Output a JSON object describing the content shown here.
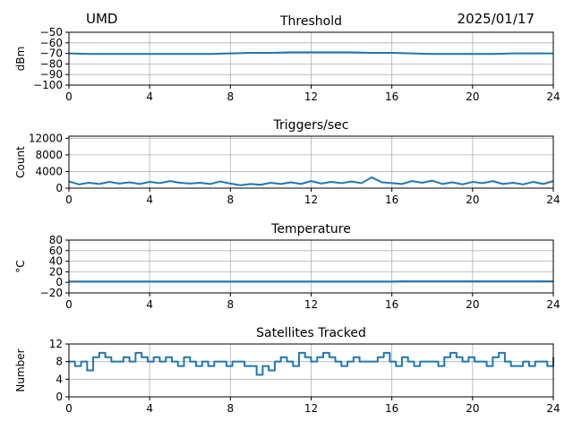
{
  "header": {
    "site": "UMD",
    "date": "2025/01/17"
  },
  "colors": {
    "series": "#1f77b4",
    "grid": "#b0b0b0",
    "axis": "#000000"
  },
  "chart_data": [
    {
      "id": "threshold",
      "type": "line",
      "title": "Threshold",
      "xlabel": "",
      "ylabel": "dBm",
      "xlim": [
        0,
        24
      ],
      "ylim": [
        -100,
        -50
      ],
      "xticks": [
        0,
        4,
        8,
        12,
        16,
        20,
        24
      ],
      "yticks": [
        -50,
        -60,
        -70,
        -80,
        -90,
        -100
      ],
      "ytick_labels": [
        "−50",
        "−60",
        "−70",
        "−80",
        "−90",
        "−100"
      ],
      "grid": true,
      "x": [
        0,
        1,
        2,
        3,
        4,
        5,
        6,
        7,
        8,
        9,
        10,
        11,
        12,
        13,
        14,
        15,
        16,
        17,
        18,
        19,
        20,
        21,
        22,
        23,
        24
      ],
      "y": [
        -70,
        -70.5,
        -70.5,
        -70.5,
        -70.5,
        -70.5,
        -70.5,
        -70.5,
        -70,
        -69.5,
        -69.5,
        -69,
        -69,
        -69,
        -69,
        -69.5,
        -69.5,
        -70,
        -70.5,
        -70.5,
        -70.5,
        -70.5,
        -70,
        -70,
        -70
      ]
    },
    {
      "id": "triggers",
      "type": "line",
      "title": "Triggers/sec",
      "xlabel": "",
      "ylabel": "Count",
      "xlim": [
        0,
        24
      ],
      "ylim": [
        0,
        12500
      ],
      "xticks": [
        0,
        4,
        8,
        12,
        16,
        20,
        24
      ],
      "yticks": [
        0,
        4000,
        8000,
        12000
      ],
      "ytick_labels": [
        "0",
        "4000",
        "8000",
        "12000"
      ],
      "grid": true,
      "x": [
        0,
        0.5,
        1,
        1.5,
        2,
        2.5,
        3,
        3.5,
        4,
        4.5,
        5,
        5.5,
        6,
        6.5,
        7,
        7.5,
        8,
        8.5,
        9,
        9.5,
        10,
        10.5,
        11,
        11.5,
        12,
        12.5,
        13,
        13.5,
        14,
        14.5,
        15,
        15.5,
        16,
        16.5,
        17,
        17.5,
        18,
        18.5,
        19,
        19.5,
        20,
        20.5,
        21,
        21.5,
        22,
        22.5,
        23,
        23.5,
        24
      ],
      "y": [
        1600,
        900,
        1300,
        1000,
        1500,
        1100,
        1400,
        1000,
        1500,
        1200,
        1700,
        1300,
        1100,
        1300,
        1000,
        1600,
        1100,
        700,
        1000,
        800,
        1300,
        1000,
        1400,
        1000,
        1700,
        1100,
        1500,
        1200,
        1600,
        1200,
        2600,
        1400,
        1200,
        1000,
        1700,
        1300,
        1800,
        1000,
        1400,
        900,
        1500,
        1200,
        1700,
        1000,
        1300,
        900,
        1500,
        1000,
        1700
      ]
    },
    {
      "id": "temperature",
      "type": "line",
      "title": "Temperature",
      "xlabel": "",
      "ylabel": "°C",
      "xlim": [
        0,
        24
      ],
      "ylim": [
        -20,
        80
      ],
      "xticks": [
        0,
        4,
        8,
        12,
        16,
        20,
        24
      ],
      "yticks": [
        -20,
        0,
        20,
        40,
        60,
        80
      ],
      "ytick_labels": [
        "−20",
        "0",
        "20",
        "40",
        "60",
        "80"
      ],
      "grid": true,
      "x": [
        0,
        4,
        8,
        12,
        16,
        16.5,
        20,
        24
      ],
      "y": [
        1.5,
        1.5,
        1.5,
        1.5,
        1.5,
        2,
        2,
        2
      ]
    },
    {
      "id": "satellites",
      "type": "line",
      "step": true,
      "title": "Satellites Tracked",
      "xlabel": "",
      "ylabel": "Number",
      "xlim": [
        0,
        24
      ],
      "ylim": [
        0,
        12
      ],
      "xticks": [
        0,
        4,
        8,
        12,
        16,
        20,
        24
      ],
      "yticks": [
        0,
        4,
        8,
        12
      ],
      "ytick_labels": [
        "0",
        "4",
        "8",
        "12"
      ],
      "grid": true,
      "x": [
        0,
        0.3,
        0.6,
        0.9,
        1.2,
        1.5,
        1.8,
        2.1,
        2.4,
        2.7,
        3.0,
        3.3,
        3.6,
        3.9,
        4.2,
        4.5,
        4.8,
        5.1,
        5.4,
        5.7,
        6.0,
        6.3,
        6.6,
        6.9,
        7.2,
        7.5,
        7.8,
        8.1,
        8.4,
        8.7,
        9.0,
        9.3,
        9.6,
        9.9,
        10.2,
        10.5,
        10.8,
        11.1,
        11.4,
        11.7,
        12.0,
        12.3,
        12.6,
        12.9,
        13.2,
        13.5,
        13.8,
        14.1,
        14.4,
        14.7,
        15.0,
        15.3,
        15.6,
        15.9,
        16.2,
        16.5,
        16.8,
        17.1,
        17.4,
        17.7,
        18.0,
        18.3,
        18.6,
        18.9,
        19.2,
        19.5,
        19.8,
        20.1,
        20.4,
        20.7,
        21.0,
        21.3,
        21.6,
        21.9,
        22.2,
        22.5,
        22.8,
        23.1,
        23.4,
        23.7,
        24.0
      ],
      "y": [
        8,
        7,
        8,
        6,
        9,
        10,
        9,
        8,
        8,
        9,
        8,
        10,
        9,
        8,
        9,
        8,
        9,
        8,
        7,
        9,
        8,
        7,
        8,
        7,
        8,
        8,
        7,
        8,
        8,
        7,
        7,
        5,
        7,
        6,
        8,
        9,
        8,
        7,
        10,
        9,
        8,
        9,
        10,
        9,
        8,
        7,
        8,
        9,
        8,
        8,
        8,
        9,
        10,
        8,
        7,
        9,
        8,
        7,
        8,
        8,
        8,
        7,
        9,
        10,
        9,
        8,
        9,
        8,
        8,
        7,
        9,
        10,
        8,
        7,
        7,
        8,
        7,
        8,
        8,
        7,
        9
      ]
    }
  ]
}
